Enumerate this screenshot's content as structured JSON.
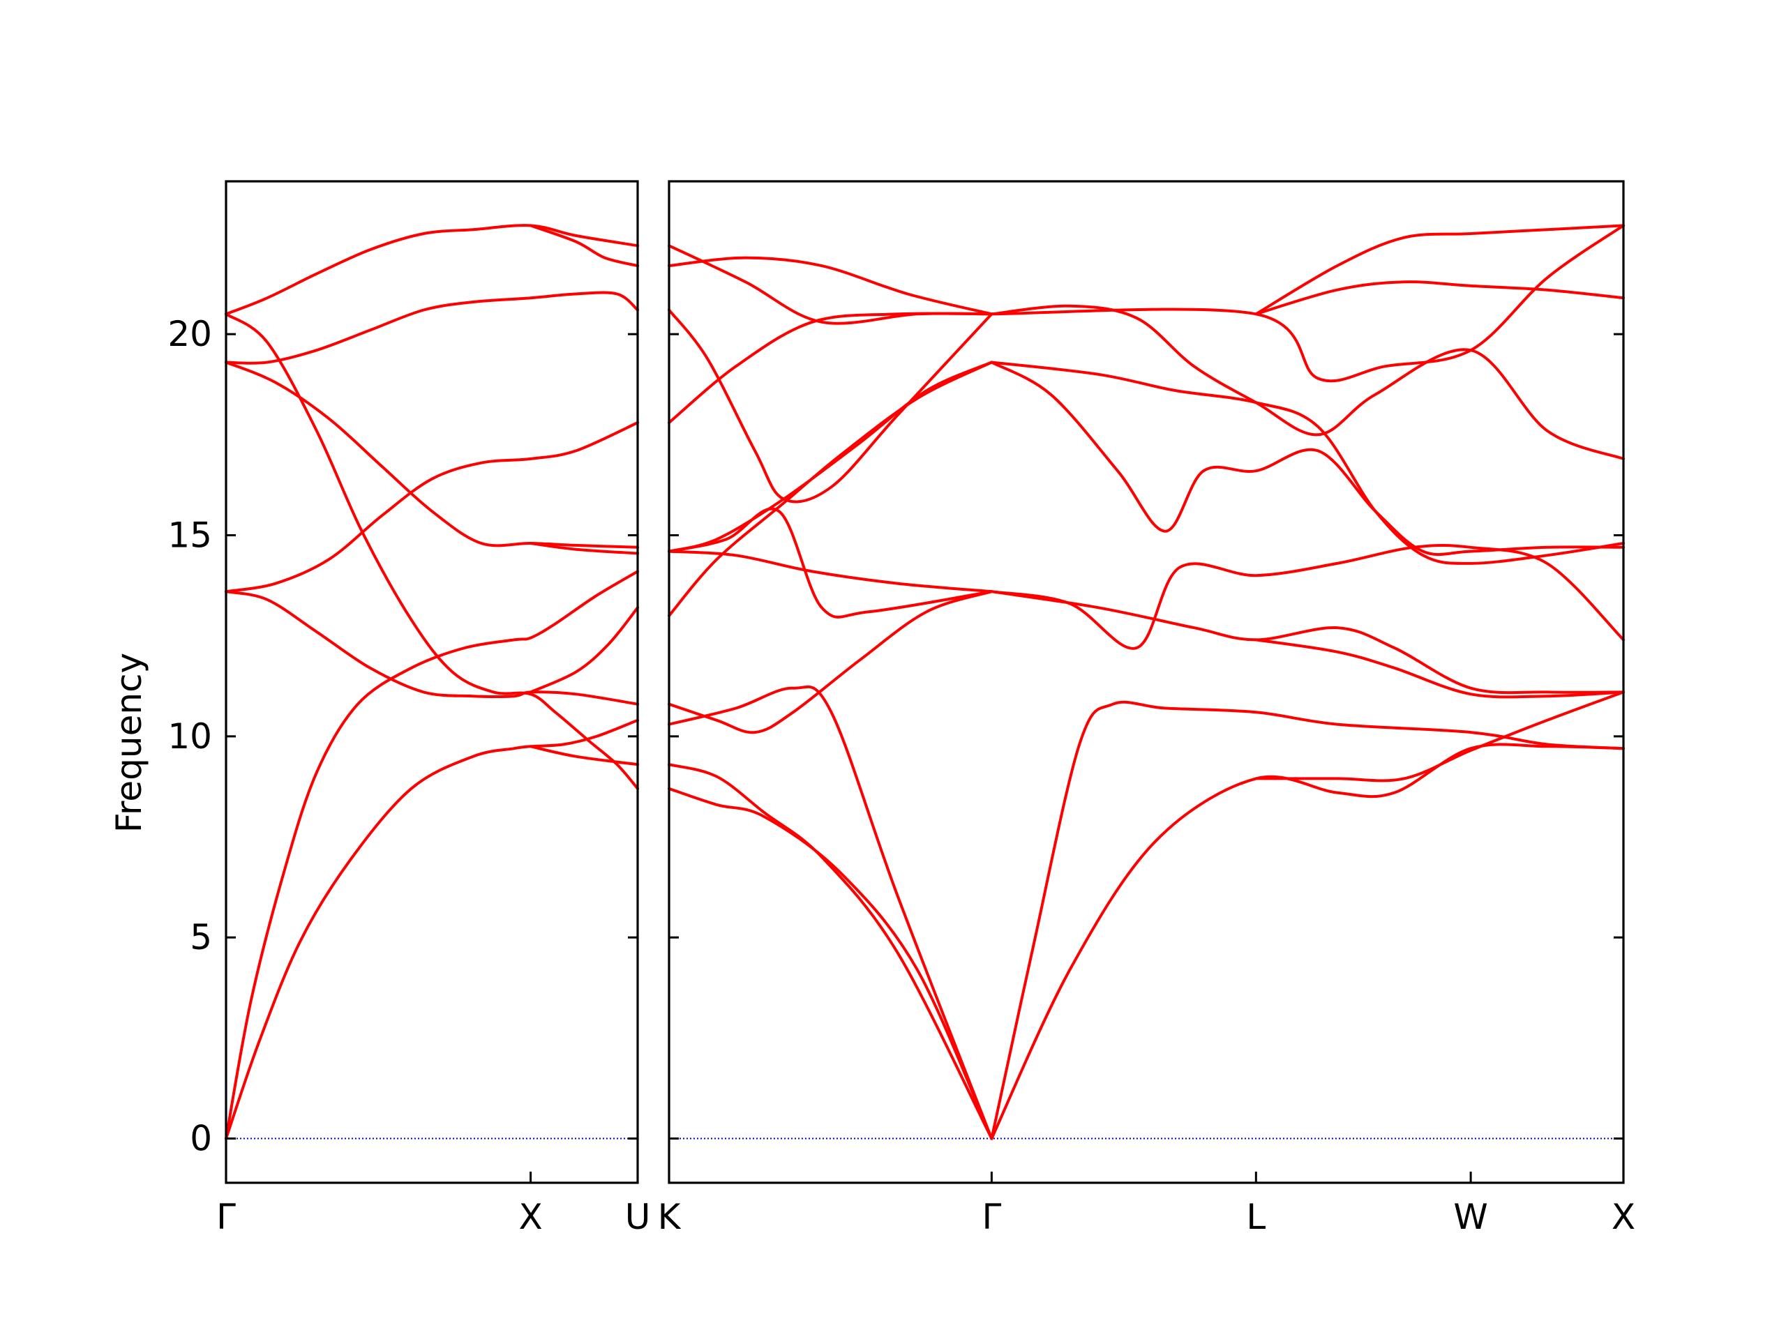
{
  "chart_data": {
    "type": "line",
    "ylabel": "Frequency",
    "ylim": [
      -1.1,
      23.8
    ],
    "yticks": [
      0,
      5,
      10,
      15,
      20
    ],
    "ytick_labels": [
      "0",
      "5",
      "10",
      "15",
      "20"
    ],
    "line_color": "#ff0000",
    "zero_line_color": "#0000cc",
    "zero_line_value": 0,
    "panels": [
      {
        "id": "left",
        "segment_labels": [
          "Γ",
          "X",
          "U"
        ],
        "x": [
          0,
          0.74,
          1.0
        ],
        "bands": [
          [
            [
              0,
              0
            ],
            [
              0.08,
              2.4
            ],
            [
              0.18,
              4.9
            ],
            [
              0.3,
              6.9
            ],
            [
              0.45,
              8.7
            ],
            [
              0.6,
              9.5
            ],
            [
              0.7,
              9.7
            ],
            [
              0.74,
              9.75
            ],
            [
              0.82,
              9.8
            ],
            [
              0.9,
              10.0
            ],
            [
              1.0,
              10.4
            ]
          ],
          [
            [
              0,
              0
            ],
            [
              0.06,
              3.4
            ],
            [
              0.14,
              6.6
            ],
            [
              0.22,
              9.1
            ],
            [
              0.32,
              10.8
            ],
            [
              0.45,
              11.7
            ],
            [
              0.58,
              12.2
            ],
            [
              0.7,
              12.4
            ],
            [
              0.74,
              12.45
            ],
            [
              0.8,
              12.8
            ],
            [
              0.9,
              13.5
            ],
            [
              1.0,
              14.1
            ]
          ],
          [
            [
              0,
              13.6
            ],
            [
              0.1,
              13.4
            ],
            [
              0.22,
              12.6
            ],
            [
              0.35,
              11.7
            ],
            [
              0.48,
              11.1
            ],
            [
              0.6,
              11.0
            ],
            [
              0.7,
              11.0
            ],
            [
              0.74,
              11.1
            ],
            [
              0.85,
              11.05
            ],
            [
              1.0,
              10.8
            ]
          ],
          [
            [
              0,
              13.6
            ],
            [
              0.12,
              13.8
            ],
            [
              0.25,
              14.4
            ],
            [
              0.38,
              15.5
            ],
            [
              0.5,
              16.4
            ],
            [
              0.62,
              16.8
            ],
            [
              0.74,
              16.9
            ],
            [
              0.85,
              17.1
            ],
            [
              1.0,
              17.8
            ]
          ],
          [
            [
              0,
              19.3
            ],
            [
              0.12,
              18.8
            ],
            [
              0.25,
              17.9
            ],
            [
              0.38,
              16.7
            ],
            [
              0.5,
              15.6
            ],
            [
              0.62,
              14.8
            ],
            [
              0.74,
              14.8
            ],
            [
              0.85,
              14.75
            ],
            [
              1.0,
              14.7
            ]
          ],
          [
            [
              0,
              19.3
            ],
            [
              0.1,
              19.3
            ],
            [
              0.22,
              19.6
            ],
            [
              0.35,
              20.1
            ],
            [
              0.48,
              20.6
            ],
            [
              0.6,
              20.8
            ],
            [
              0.74,
              20.9
            ],
            [
              0.85,
              21.0
            ],
            [
              0.95,
              21.0
            ],
            [
              1.0,
              20.6
            ]
          ],
          [
            [
              0,
              20.5
            ],
            [
              0.1,
              20.9
            ],
            [
              0.22,
              21.5
            ],
            [
              0.35,
              22.1
            ],
            [
              0.48,
              22.5
            ],
            [
              0.6,
              22.6
            ],
            [
              0.74,
              22.7
            ],
            [
              0.85,
              22.45
            ],
            [
              1.0,
              22.2
            ]
          ],
          [
            [
              0,
              20.5
            ],
            [
              0.1,
              19.8
            ],
            [
              0.22,
              17.6
            ],
            [
              0.33,
              15.1
            ],
            [
              0.45,
              12.9
            ],
            [
              0.55,
              11.6
            ],
            [
              0.65,
              11.1
            ],
            [
              0.74,
              11.05
            ],
            [
              0.8,
              10.6
            ],
            [
              0.88,
              9.9
            ],
            [
              0.95,
              9.3
            ],
            [
              1.0,
              8.7
            ]
          ],
          [
            [
              0.74,
              9.75
            ],
            [
              0.85,
              9.5
            ],
            [
              1.0,
              9.3
            ]
          ],
          [
            [
              0.74,
              11.1
            ],
            [
              0.85,
              11.6
            ],
            [
              0.93,
              12.3
            ],
            [
              1.0,
              13.2
            ]
          ],
          [
            [
              0.74,
              14.8
            ],
            [
              0.85,
              14.65
            ],
            [
              1.0,
              14.55
            ]
          ],
          [
            [
              0.74,
              22.7
            ],
            [
              0.85,
              22.3
            ],
            [
              0.92,
              21.9
            ],
            [
              1.0,
              21.7
            ]
          ]
        ]
      },
      {
        "id": "right",
        "segment_labels": [
          "K",
          "Γ",
          "L",
          "W",
          "X"
        ],
        "x": [
          0,
          0.338,
          0.615,
          0.84,
          1.0
        ],
        "bands": [
          [
            [
              0,
              8.7
            ],
            [
              0.05,
              8.3
            ],
            [
              0.1,
              8.0
            ],
            [
              0.18,
              6.6
            ],
            [
              0.26,
              4.2
            ],
            [
              0.338,
              0
            ]
          ],
          [
            [
              0,
              9.3
            ],
            [
              0.05,
              9.0
            ],
            [
              0.1,
              8.1
            ],
            [
              0.16,
              7.0
            ],
            [
              0.24,
              4.6
            ],
            [
              0.338,
              0
            ]
          ],
          [
            [
              0,
              10.3
            ],
            [
              0.07,
              10.7
            ],
            [
              0.13,
              11.2
            ],
            [
              0.17,
              10.6
            ],
            [
              0.24,
              6.0
            ],
            [
              0.338,
              0
            ]
          ],
          [
            [
              0,
              10.8
            ],
            [
              0.05,
              10.4
            ],
            [
              0.09,
              10.1
            ],
            [
              0.13,
              10.6
            ],
            [
              0.2,
              11.9
            ],
            [
              0.27,
              13.1
            ],
            [
              0.338,
              13.6
            ]
          ],
          [
            [
              0,
              14.6
            ],
            [
              0.06,
              14.9
            ],
            [
              0.115,
              15.6
            ],
            [
              0.16,
              13.2
            ],
            [
              0.21,
              13.1
            ],
            [
              0.338,
              13.6
            ]
          ],
          [
            [
              0,
              14.6
            ],
            [
              0.07,
              14.5
            ],
            [
              0.15,
              14.1
            ],
            [
              0.24,
              13.8
            ],
            [
              0.338,
              13.6
            ]
          ],
          [
            [
              0,
              14.6
            ],
            [
              0.05,
              14.9
            ],
            [
              0.12,
              15.9
            ],
            [
              0.2,
              17.3
            ],
            [
              0.27,
              18.6
            ],
            [
              0.338,
              19.3
            ]
          ],
          [
            [
              0,
              17.8
            ],
            [
              0.07,
              19.2
            ],
            [
              0.15,
              20.3
            ],
            [
              0.24,
              20.5
            ],
            [
              0.338,
              20.5
            ]
          ],
          [
            [
              0,
              21.7
            ],
            [
              0.08,
              21.9
            ],
            [
              0.16,
              21.7
            ],
            [
              0.25,
              21.0
            ],
            [
              0.338,
              20.5
            ]
          ],
          [
            [
              0,
              22.2
            ],
            [
              0.08,
              21.3
            ],
            [
              0.16,
              20.3
            ],
            [
              0.26,
              20.5
            ],
            [
              0.338,
              20.5
            ]
          ],
          [
            [
              0,
              20.6
            ],
            [
              0.04,
              19.4
            ],
            [
              0.09,
              17.1
            ],
            [
              0.12,
              15.9
            ],
            [
              0.17,
              16.2
            ],
            [
              0.24,
              18.0
            ],
            [
              0.338,
              20.5
            ]
          ],
          [
            [
              0,
              13.0
            ],
            [
              0.05,
              14.4
            ],
            [
              0.12,
              15.8
            ],
            [
              0.18,
              17.0
            ],
            [
              0.26,
              18.4
            ],
            [
              0.338,
              19.3
            ]
          ],
          [
            [
              0.338,
              0
            ],
            [
              0.38,
              4.6
            ],
            [
              0.43,
              9.8
            ],
            [
              0.465,
              10.8
            ],
            [
              0.52,
              10.7
            ],
            [
              0.615,
              10.6
            ],
            [
              0.7,
              10.3
            ],
            [
              0.84,
              10.1
            ],
            [
              0.92,
              9.8
            ],
            [
              1.0,
              9.7
            ]
          ],
          [
            [
              0.338,
              0
            ],
            [
              0.42,
              4.2
            ],
            [
              0.51,
              7.4
            ],
            [
              0.615,
              8.95
            ],
            [
              0.7,
              8.6
            ],
            [
              0.76,
              8.6
            ],
            [
              0.84,
              9.7
            ],
            [
              0.92,
              9.75
            ],
            [
              1.0,
              9.7
            ]
          ],
          [
            [
              0.615,
              8.95
            ],
            [
              0.7,
              8.95
            ],
            [
              0.77,
              8.95
            ],
            [
              0.84,
              9.65
            ],
            [
              0.92,
              10.4
            ],
            [
              1.0,
              11.1
            ]
          ],
          [
            [
              0.338,
              13.6
            ],
            [
              0.42,
              13.3
            ],
            [
              0.49,
              12.2
            ],
            [
              0.535,
              14.2
            ],
            [
              0.615,
              14.0
            ],
            [
              0.7,
              14.3
            ],
            [
              0.78,
              14.7
            ],
            [
              0.84,
              14.7
            ],
            [
              0.92,
              14.3
            ],
            [
              1.0,
              12.4
            ]
          ],
          [
            [
              0.338,
              13.6
            ],
            [
              0.45,
              13.2
            ],
            [
              0.55,
              12.7
            ],
            [
              0.615,
              12.4
            ],
            [
              0.7,
              12.7
            ],
            [
              0.76,
              12.2
            ],
            [
              0.84,
              11.2
            ],
            [
              0.92,
              11.1
            ],
            [
              1.0,
              11.1
            ]
          ],
          [
            [
              0.615,
              12.4
            ],
            [
              0.7,
              12.1
            ],
            [
              0.76,
              11.7
            ],
            [
              0.84,
              11.05
            ],
            [
              0.92,
              11.0
            ],
            [
              1.0,
              11.1
            ]
          ],
          [
            [
              0.338,
              19.3
            ],
            [
              0.4,
              18.5
            ],
            [
              0.47,
              16.6
            ],
            [
              0.52,
              15.1
            ],
            [
              0.56,
              16.6
            ],
            [
              0.615,
              16.6
            ],
            [
              0.68,
              17.1
            ],
            [
              0.74,
              15.6
            ],
            [
              0.79,
              14.6
            ],
            [
              0.84,
              14.6
            ],
            [
              0.92,
              14.7
            ],
            [
              1.0,
              14.7
            ]
          ],
          [
            [
              0.338,
              19.3
            ],
            [
              0.45,
              19.0
            ],
            [
              0.53,
              18.6
            ],
            [
              0.615,
              18.3
            ],
            [
              0.68,
              17.7
            ],
            [
              0.74,
              15.6
            ],
            [
              0.79,
              14.5
            ],
            [
              0.84,
              14.3
            ],
            [
              0.92,
              14.5
            ],
            [
              1.0,
              14.8
            ]
          ],
          [
            [
              0.338,
              20.5
            ],
            [
              0.42,
              20.7
            ],
            [
              0.49,
              20.4
            ],
            [
              0.55,
              19.2
            ],
            [
              0.615,
              18.3
            ],
            [
              0.68,
              17.5
            ],
            [
              0.74,
              18.5
            ],
            [
              0.84,
              19.6
            ],
            [
              0.92,
              17.6
            ],
            [
              1.0,
              16.9
            ]
          ],
          [
            [
              0.338,
              20.5
            ],
            [
              0.615,
              20.5
            ],
            [
              0.68,
              18.9
            ],
            [
              0.75,
              19.2
            ],
            [
              0.84,
              19.6
            ],
            [
              0.92,
              21.4
            ],
            [
              1.0,
              22.7
            ]
          ],
          [
            [
              0.615,
              20.5
            ],
            [
              0.7,
              21.1
            ],
            [
              0.77,
              21.3
            ],
            [
              0.84,
              21.2
            ],
            [
              0.92,
              21.1
            ],
            [
              1.0,
              20.9
            ]
          ],
          [
            [
              0.615,
              20.5
            ],
            [
              0.7,
              21.7
            ],
            [
              0.77,
              22.4
            ],
            [
              0.84,
              22.5
            ],
            [
              0.92,
              22.6
            ],
            [
              1.0,
              22.7
            ]
          ]
        ]
      }
    ]
  }
}
